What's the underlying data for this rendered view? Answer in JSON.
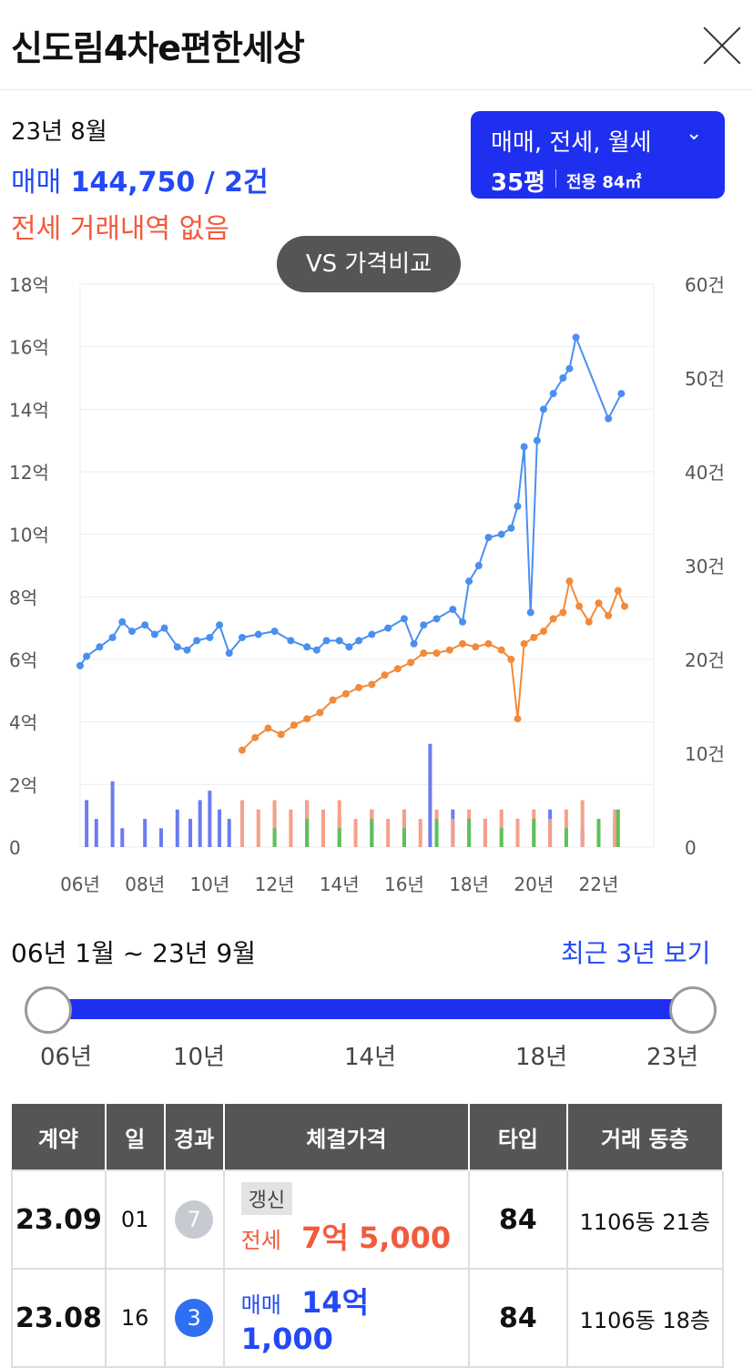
{
  "header": {
    "title": "신도림4차e편한세상"
  },
  "summary": {
    "period": "23년 8월",
    "sale_label": "매매",
    "sale_value": "144,750 / 2건",
    "jeonse_text": "전세 거래내역 없음"
  },
  "filter": {
    "types": "매매, 전세, 월세",
    "pyeong": "35평",
    "area": "전용 84㎡"
  },
  "compare_button": "VS 가격비교",
  "chart_data": {
    "type": "line",
    "left_axis_ticks": [
      "18억",
      "16억",
      "14억",
      "12억",
      "10억",
      "8억",
      "6억",
      "4억",
      "2억",
      "0"
    ],
    "right_axis_ticks": [
      "60건",
      "50건",
      "40건",
      "30건",
      "20건",
      "10건",
      "0"
    ],
    "x_ticks": [
      "06년",
      "08년",
      "10년",
      "12년",
      "14년",
      "16년",
      "18년",
      "20년",
      "22년"
    ],
    "x_range": [
      2006.0,
      2023.7
    ],
    "y_range_eok": [
      0,
      18
    ],
    "count_range": [
      0,
      60
    ],
    "colors": {
      "sale": "#4a8ff0",
      "jeonse": "#f28a3a",
      "sale_bar": "#6b7cf0",
      "jeonse_bar": "#f5a08a",
      "monthly_bar": "#5cc15c"
    },
    "series": [
      {
        "values": [
          [
            2006.0,
            5.8
          ],
          [
            2006.2,
            6.1
          ],
          [
            2006.6,
            6.4
          ],
          [
            2007.0,
            6.7
          ],
          [
            2007.3,
            7.2
          ],
          [
            2007.6,
            6.9
          ],
          [
            2008.0,
            7.1
          ],
          [
            2008.3,
            6.8
          ],
          [
            2008.6,
            7.0
          ],
          [
            2009.0,
            6.4
          ],
          [
            2009.3,
            6.3
          ],
          [
            2009.6,
            6.6
          ],
          [
            2010.0,
            6.7
          ],
          [
            2010.3,
            7.1
          ],
          [
            2010.6,
            6.2
          ],
          [
            2011.0,
            6.7
          ],
          [
            2011.5,
            6.8
          ],
          [
            2012.0,
            6.9
          ],
          [
            2012.5,
            6.6
          ],
          [
            2013.0,
            6.4
          ],
          [
            2013.3,
            6.3
          ],
          [
            2013.6,
            6.6
          ],
          [
            2014.0,
            6.6
          ],
          [
            2014.3,
            6.4
          ],
          [
            2014.6,
            6.6
          ],
          [
            2015.0,
            6.8
          ],
          [
            2015.5,
            7.0
          ],
          [
            2016.0,
            7.3
          ],
          [
            2016.3,
            6.5
          ],
          [
            2016.6,
            7.1
          ],
          [
            2017.0,
            7.3
          ],
          [
            2017.5,
            7.6
          ],
          [
            2017.8,
            7.2
          ],
          [
            2018.0,
            8.5
          ],
          [
            2018.3,
            9.0
          ],
          [
            2018.6,
            9.9
          ],
          [
            2019.0,
            10.0
          ],
          [
            2019.3,
            10.2
          ],
          [
            2019.5,
            10.9
          ],
          [
            2019.7,
            12.8
          ],
          [
            2019.9,
            7.5
          ],
          [
            2020.1,
            13.0
          ],
          [
            2020.3,
            14.0
          ],
          [
            2020.6,
            14.5
          ],
          [
            2020.9,
            15.0
          ],
          [
            2021.1,
            15.3
          ],
          [
            2021.3,
            16.3
          ],
          [
            2022.3,
            13.7
          ],
          [
            2022.7,
            14.5
          ]
        ]
      },
      {
        "values": [
          [
            2011.0,
            3.1
          ],
          [
            2011.4,
            3.5
          ],
          [
            2011.8,
            3.8
          ],
          [
            2012.2,
            3.6
          ],
          [
            2012.6,
            3.9
          ],
          [
            2013.0,
            4.1
          ],
          [
            2013.4,
            4.3
          ],
          [
            2013.8,
            4.7
          ],
          [
            2014.2,
            4.9
          ],
          [
            2014.6,
            5.1
          ],
          [
            2015.0,
            5.2
          ],
          [
            2015.4,
            5.5
          ],
          [
            2015.8,
            5.7
          ],
          [
            2016.2,
            5.9
          ],
          [
            2016.6,
            6.2
          ],
          [
            2017.0,
            6.2
          ],
          [
            2017.4,
            6.3
          ],
          [
            2017.8,
            6.5
          ],
          [
            2018.2,
            6.4
          ],
          [
            2018.6,
            6.5
          ],
          [
            2019.0,
            6.3
          ],
          [
            2019.3,
            6.0
          ],
          [
            2019.5,
            4.1
          ],
          [
            2019.7,
            6.5
          ],
          [
            2020.0,
            6.7
          ],
          [
            2020.3,
            6.9
          ],
          [
            2020.6,
            7.3
          ],
          [
            2020.9,
            7.5
          ],
          [
            2021.1,
            8.5
          ],
          [
            2021.4,
            7.7
          ],
          [
            2021.7,
            7.2
          ],
          [
            2022.0,
            7.8
          ],
          [
            2022.3,
            7.4
          ],
          [
            2022.6,
            8.2
          ],
          [
            2022.8,
            7.7
          ]
        ]
      }
    ],
    "volume_bars": {
      "sale": [
        [
          2006.2,
          5
        ],
        [
          2006.5,
          3
        ],
        [
          2007.0,
          7
        ],
        [
          2007.3,
          2
        ],
        [
          2008.0,
          3
        ],
        [
          2008.5,
          2
        ],
        [
          2009.0,
          4
        ],
        [
          2009.4,
          3
        ],
        [
          2009.7,
          5
        ],
        [
          2010.0,
          6
        ],
        [
          2010.3,
          4
        ],
        [
          2010.6,
          3
        ],
        [
          2011.0,
          3
        ],
        [
          2012.0,
          4
        ],
        [
          2013.0,
          5
        ],
        [
          2014.0,
          3
        ],
        [
          2015.0,
          4
        ],
        [
          2016.0,
          4
        ],
        [
          2016.8,
          11
        ],
        [
          2017.5,
          4
        ],
        [
          2018.5,
          3
        ],
        [
          2019.5,
          3
        ],
        [
          2020.5,
          4
        ],
        [
          2021.5,
          2
        ],
        [
          2022.5,
          3
        ]
      ],
      "jeonse": [
        [
          2011.0,
          5
        ],
        [
          2011.5,
          4
        ],
        [
          2012.0,
          5
        ],
        [
          2012.5,
          4
        ],
        [
          2013.0,
          5
        ],
        [
          2013.5,
          4
        ],
        [
          2014.0,
          5
        ],
        [
          2014.5,
          3
        ],
        [
          2015.0,
          4
        ],
        [
          2015.5,
          3
        ],
        [
          2016.0,
          4
        ],
        [
          2016.5,
          3
        ],
        [
          2017.0,
          4
        ],
        [
          2017.5,
          3
        ],
        [
          2018.0,
          4
        ],
        [
          2018.5,
          3
        ],
        [
          2019.0,
          4
        ],
        [
          2019.5,
          3
        ],
        [
          2020.0,
          4
        ],
        [
          2020.5,
          3
        ],
        [
          2021.0,
          4
        ],
        [
          2021.5,
          5
        ],
        [
          2022.0,
          3
        ],
        [
          2022.5,
          4
        ]
      ],
      "monthly": [
        [
          2012.0,
          2
        ],
        [
          2013.0,
          3
        ],
        [
          2014.0,
          2
        ],
        [
          2015.0,
          3
        ],
        [
          2016.0,
          2
        ],
        [
          2017.0,
          3
        ],
        [
          2018.0,
          3
        ],
        [
          2019.0,
          2
        ],
        [
          2020.0,
          3
        ],
        [
          2021.0,
          2
        ],
        [
          2022.0,
          3
        ],
        [
          2022.6,
          4
        ]
      ]
    }
  },
  "range": {
    "text": "06년 1월 ~ 23년 9월",
    "recent_link": "최근 3년 보기",
    "ticks": [
      "06년",
      "10년",
      "14년",
      "18년",
      "23년"
    ]
  },
  "table": {
    "headers": [
      "계약",
      "일",
      "경과",
      "체결가격",
      "타입",
      "거래 동층"
    ],
    "rows": [
      {
        "contract": "23.09",
        "day": "01",
        "elapsed": "7",
        "tag": "갱신",
        "price_label": "전세",
        "price": "7억 5,000",
        "type": "84",
        "dong_floor": "1106동  21층"
      },
      {
        "contract": "23.08",
        "day": "16",
        "elapsed": "3",
        "tag": "",
        "price_label": "매매",
        "price": "14억 1,000",
        "type": "84",
        "dong_floor": "1106동  18층"
      }
    ]
  }
}
